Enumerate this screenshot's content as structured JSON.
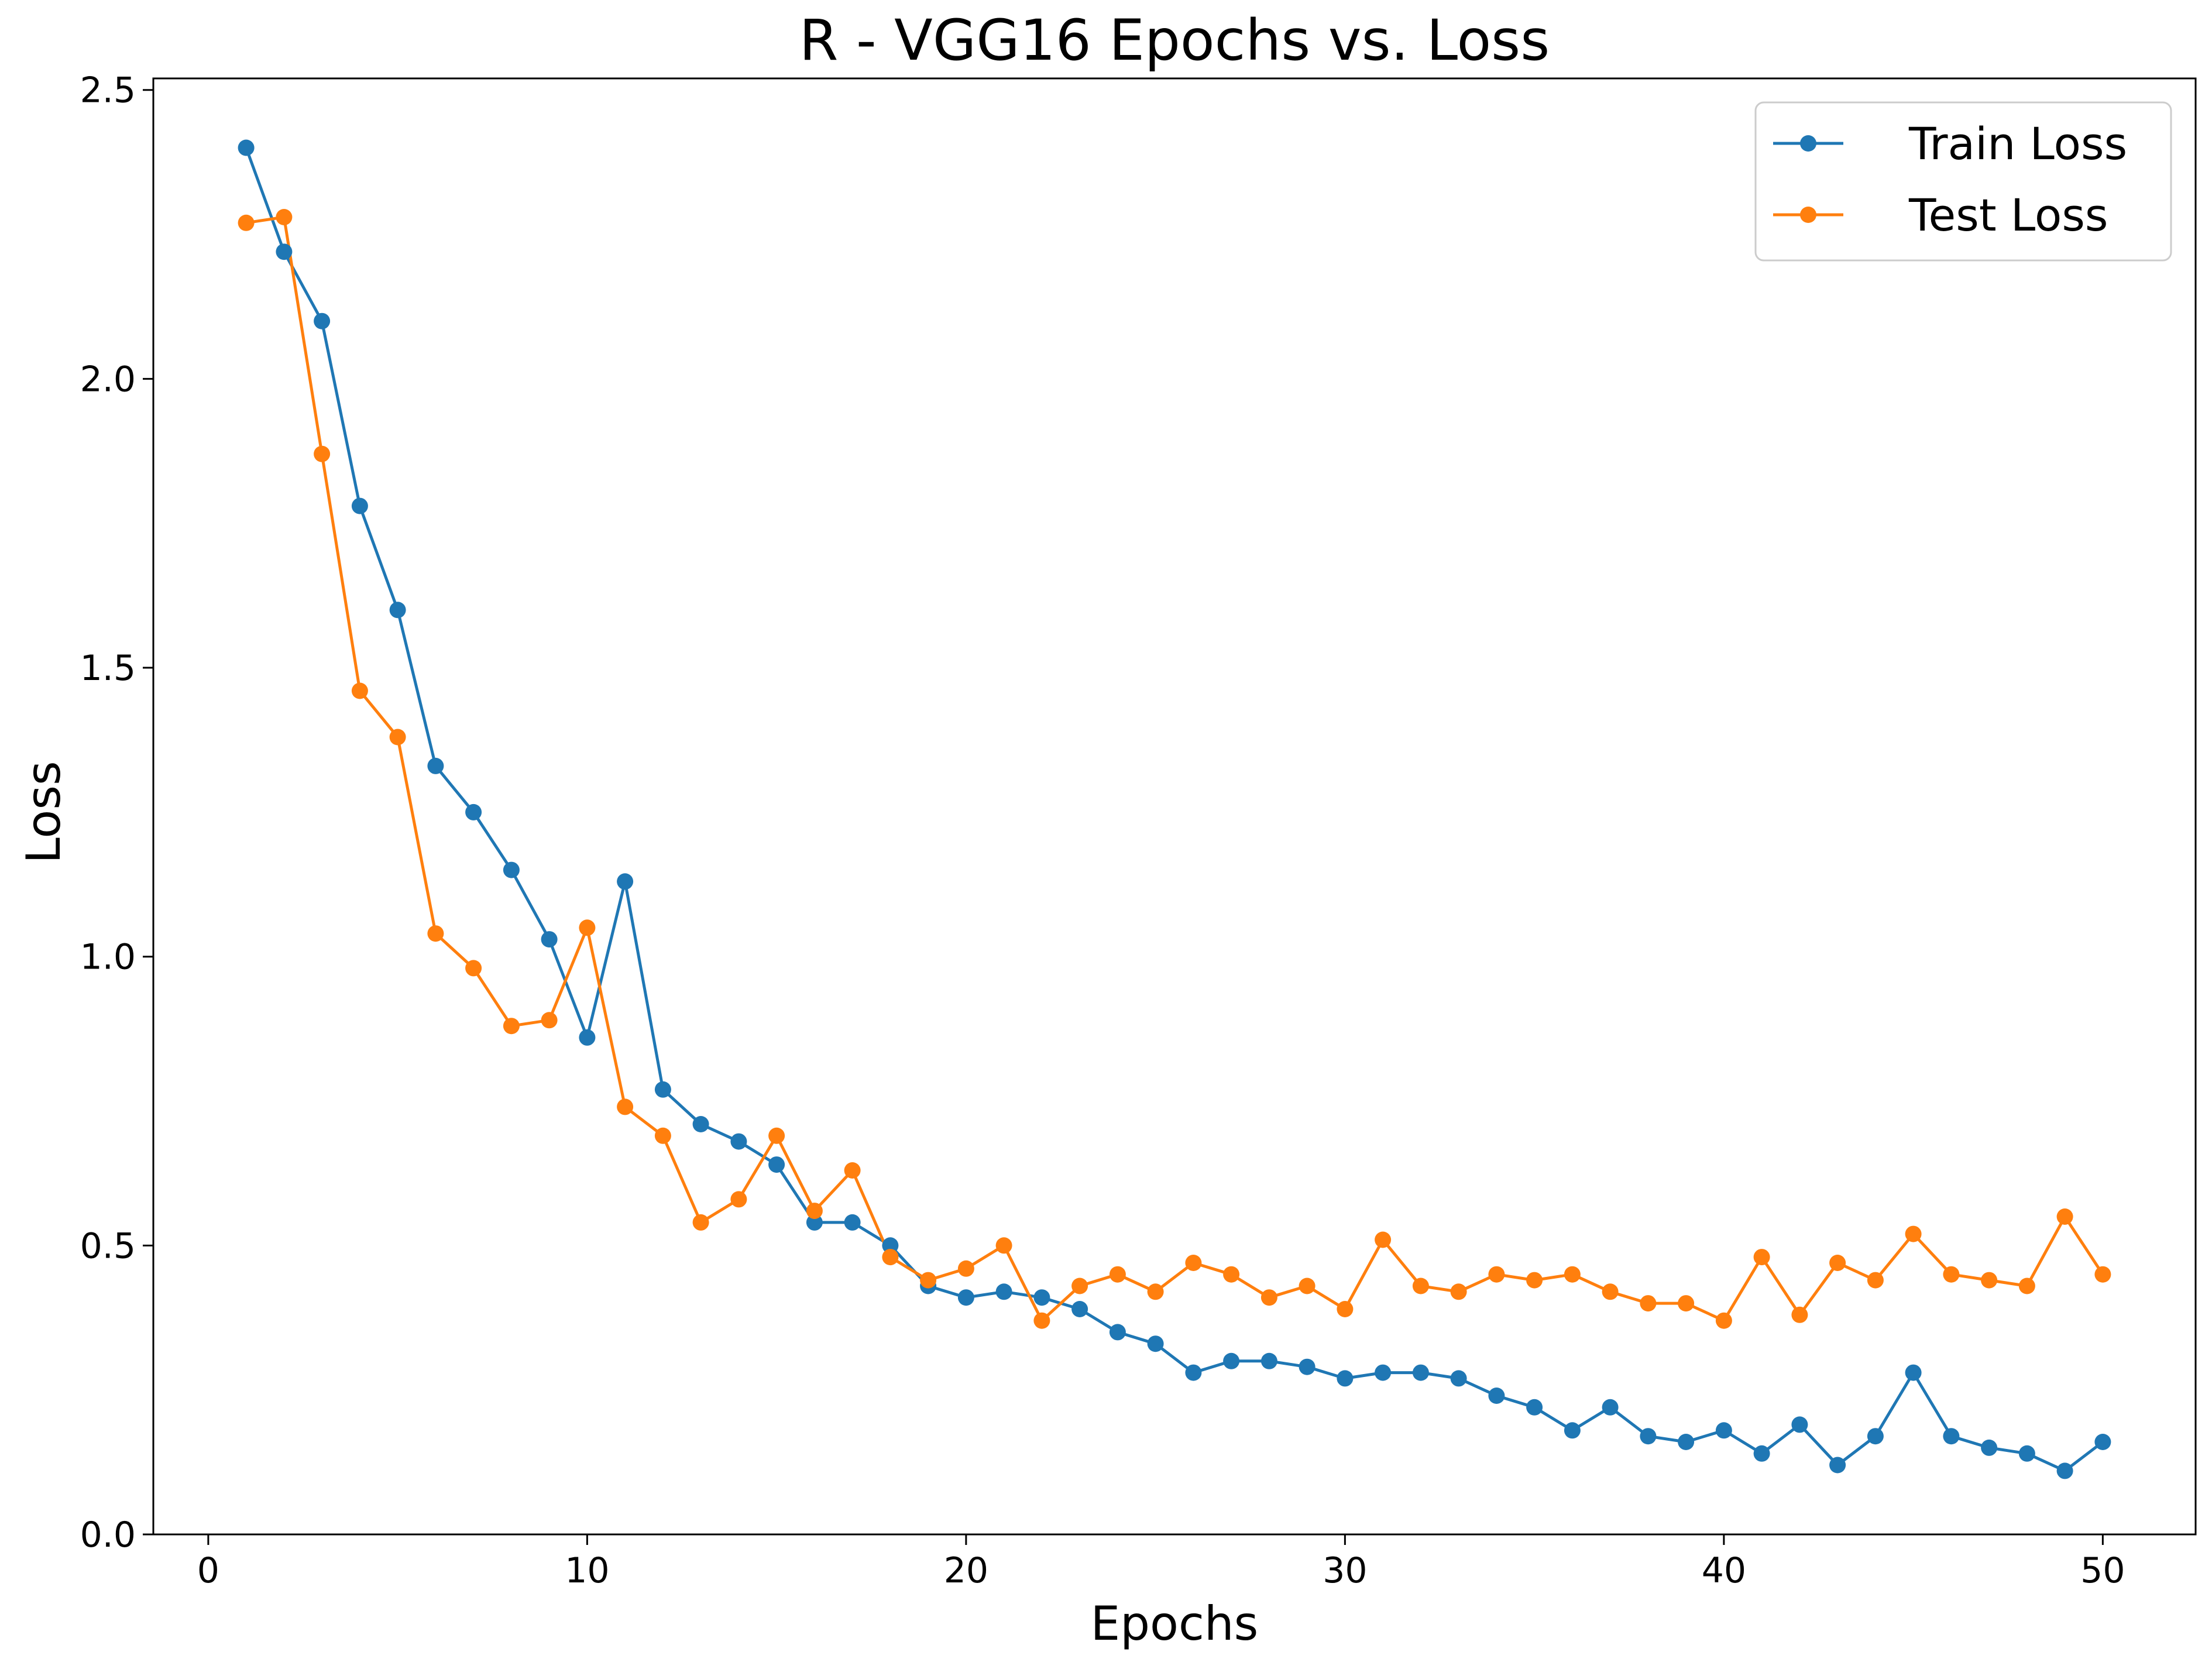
{
  "chart_data": {
    "type": "line",
    "title": "R - VGG16 Epochs vs. Loss",
    "xlabel": "Epochs",
    "ylabel": "Loss",
    "xlim": [
      -1.45,
      52.45
    ],
    "ylim": [
      0.0,
      2.52
    ],
    "xticks": [
      0,
      10,
      20,
      30,
      40,
      50
    ],
    "xtick_labels": [
      "0",
      "10",
      "20",
      "30",
      "40",
      "50"
    ],
    "yticks": [
      0.0,
      0.5,
      1.0,
      1.5,
      2.0,
      2.5
    ],
    "ytick_labels": [
      "0.0",
      "0.5",
      "1.0",
      "1.5",
      "2.0",
      "2.5"
    ],
    "grid": false,
    "legend_position": "upper right",
    "x": [
      1,
      2,
      3,
      4,
      5,
      6,
      7,
      8,
      9,
      10,
      11,
      12,
      13,
      14,
      15,
      16,
      17,
      18,
      19,
      20,
      21,
      22,
      23,
      24,
      25,
      26,
      27,
      28,
      29,
      30,
      31,
      32,
      33,
      34,
      35,
      36,
      37,
      38,
      39,
      40,
      41,
      42,
      43,
      44,
      45,
      46,
      47,
      48,
      49,
      50
    ],
    "series": [
      {
        "name": "Train Loss",
        "color": "#1f77b4",
        "marker": "circle",
        "values": [
          2.4,
          2.22,
          2.1,
          1.78,
          1.6,
          1.33,
          1.25,
          1.15,
          1.03,
          0.86,
          1.13,
          0.77,
          0.71,
          0.68,
          0.64,
          0.54,
          0.54,
          0.5,
          0.43,
          0.41,
          0.42,
          0.41,
          0.39,
          0.35,
          0.33,
          0.28,
          0.3,
          0.3,
          0.29,
          0.27,
          0.28,
          0.28,
          0.27,
          0.24,
          0.22,
          0.18,
          0.22,
          0.17,
          0.16,
          0.18,
          0.14,
          0.19,
          0.12,
          0.17,
          0.28,
          0.17,
          0.15,
          0.14,
          0.11,
          0.16
        ]
      },
      {
        "name": "Test Loss",
        "color": "#ff7f0e",
        "marker": "circle",
        "values": [
          2.27,
          2.28,
          1.87,
          1.46,
          1.38,
          1.04,
          0.98,
          0.88,
          0.89,
          1.05,
          0.74,
          0.69,
          0.54,
          0.58,
          0.69,
          0.56,
          0.63,
          0.48,
          0.44,
          0.46,
          0.5,
          0.37,
          0.43,
          0.45,
          0.42,
          0.47,
          0.45,
          0.41,
          0.43,
          0.39,
          0.51,
          0.43,
          0.42,
          0.45,
          0.44,
          0.45,
          0.42,
          0.4,
          0.4,
          0.37,
          0.48,
          0.38,
          0.47,
          0.44,
          0.52,
          0.45,
          0.44,
          0.43,
          0.55,
          0.45
        ]
      }
    ]
  }
}
